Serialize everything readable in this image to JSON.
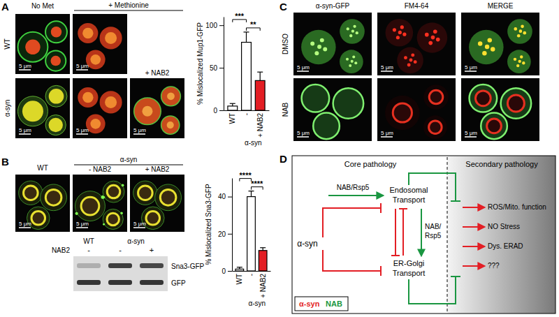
{
  "panel_labels": [
    "A",
    "B",
    "C",
    "D"
  ],
  "scale_bar": "5 μm",
  "panel_a": {
    "columns": [
      "No Met",
      "+ Methionine"
    ],
    "rows": [
      "WT",
      "α-syn"
    ],
    "treatment": "+ NAB2"
  },
  "panel_b": {
    "columns": [
      "WT",
      "α-syn",
      "- NAB2",
      "+ NAB2"
    ],
    "blot": {
      "columns": [
        "WT",
        "α-syn"
      ],
      "treatment_label": "NAB2",
      "treatment": [
        "-",
        "-",
        "+"
      ],
      "bands": [
        "Sna3-GFP",
        "GFP"
      ]
    }
  },
  "panel_c": {
    "columns": [
      "α-syn-GFP",
      "FM4-64",
      "MERGE"
    ],
    "rows": [
      "DMSO",
      "NAB"
    ]
  },
  "panel_d": {
    "headers": [
      "Core pathology",
      "Secondary pathology"
    ],
    "source": "α-syn",
    "endosomal": [
      "Endosomal",
      "Transport"
    ],
    "er_golgi": [
      "ER-Golgi",
      "Transport"
    ],
    "nab_to_endosomal": "NAB/Rsp5",
    "nab_endosomal_to_er": [
      "NAB/",
      "Rsp5"
    ],
    "outcomes": [
      "ROS/Mito. function",
      "NO Stress",
      "Dys. ERAD",
      "???"
    ],
    "key": [
      {
        "text": "α-syn",
        "color": "#e31e24"
      },
      {
        "text": "NAB",
        "color": "#1a9641"
      }
    ]
  },
  "chart_data": [
    {
      "type": "bar",
      "ylabel": "% Mislocalized Mup1-GFP",
      "xlabel": "α-syn",
      "categories": [
        "WT",
        "-",
        "+ NAB2"
      ],
      "values": [
        5,
        80,
        35
      ],
      "errors": [
        3,
        12,
        10
      ],
      "colors": [
        "#ffffff",
        "#ffffff",
        "#e31e24"
      ],
      "ylim": [
        0,
        110
      ],
      "yticks": [
        0,
        50,
        100
      ],
      "annotations": [
        {
          "text": "***",
          "between": [
            "WT",
            "-"
          ]
        },
        {
          "text": "**",
          "between": [
            "-",
            "+ NAB2"
          ]
        }
      ]
    },
    {
      "type": "bar",
      "ylabel": "% Mislocalized Sna3-GFP",
      "xlabel": "α-syn",
      "categories": [
        "WT",
        "-",
        "+ NAB2"
      ],
      "values": [
        1,
        40,
        11
      ],
      "errors": [
        1,
        3,
        1.5
      ],
      "colors": [
        "#ffffff",
        "#ffffff",
        "#e31e24"
      ],
      "ylim": [
        0,
        50
      ],
      "yticks": [
        0,
        20,
        40
      ],
      "annotations": [
        {
          "text": "****",
          "between": [
            "WT",
            "-"
          ]
        },
        {
          "text": "****",
          "between": [
            "-",
            "+ NAB2"
          ]
        }
      ]
    }
  ]
}
